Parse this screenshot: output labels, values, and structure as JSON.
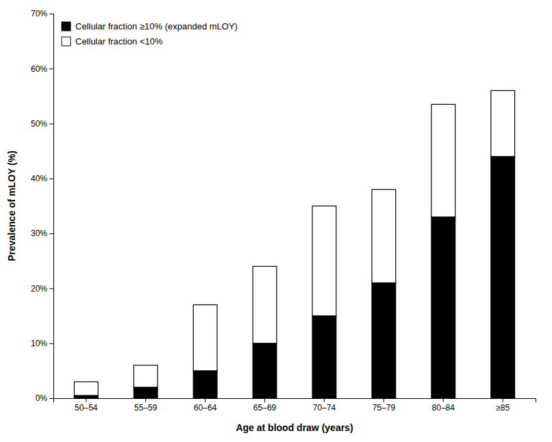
{
  "chart_data": {
    "type": "bar",
    "stacked": true,
    "categories": [
      "50–54",
      "55–59",
      "60–64",
      "65–69",
      "70–74",
      "75–79",
      "80–84",
      "≥85"
    ],
    "series": [
      {
        "name": "Cellular fraction ≥10% (expanded mLOY)",
        "color": "#000000",
        "values": [
          0.5,
          2.0,
          5.0,
          10.0,
          15.0,
          21.0,
          33.0,
          44.0
        ]
      },
      {
        "name": "Cellular fraction <10%",
        "color": "#ffffff",
        "values": [
          2.5,
          4.0,
          12.0,
          14.0,
          20.0,
          17.0,
          20.5,
          12.0
        ]
      }
    ],
    "xlabel": "Age at blood draw (years)",
    "ylabel": "Prevalence of mLOY (%)",
    "ylim": [
      0,
      70
    ],
    "yticks": [
      {
        "value": 0,
        "label": "0%"
      },
      {
        "value": 10,
        "label": "10%"
      },
      {
        "value": 20,
        "label": "20%"
      },
      {
        "value": 30,
        "label": "30%"
      },
      {
        "value": 40,
        "label": "40%"
      },
      {
        "value": 50,
        "label": "50%"
      },
      {
        "value": 60,
        "label": "60%"
      },
      {
        "value": 70,
        "label": "70%"
      }
    ],
    "grid": false,
    "legend": "upper left"
  }
}
